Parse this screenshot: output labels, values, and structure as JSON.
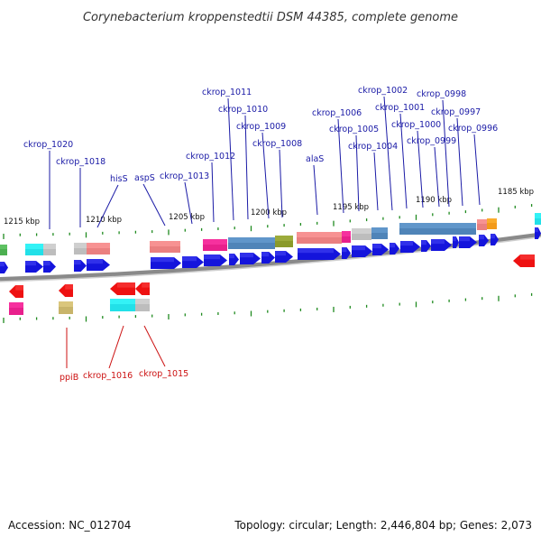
{
  "title": "Corynebacterium kroppenstedtii DSM 44385, complete genome",
  "colors": {
    "backbone": "#8a8a8a",
    "cds": "#1414dc",
    "reverse_cds": "#ee1111",
    "tick": "#1f8a1f",
    "label_forward": "#1a1aa6",
    "label_reverse": "#cc1111",
    "cog_cyan": "#22e0e8",
    "cog_grey": "#bdbdbd",
    "cog_salmon": "#ea8080",
    "cog_magenta": "#e8208c",
    "cog_steelblue": "#4f84b8",
    "cog_olive": "#8a9a2a",
    "cog_orange": "#f39a1a",
    "cog_khaki": "#c8b46a",
    "cog_green": "#4caf50"
  },
  "scale_labels": [
    "1215 kbp",
    "1210 kbp",
    "1205 kbp",
    "1200 kbp",
    "1195 kbp",
    "1190 kbp",
    "1185 kbp"
  ],
  "top_labels": [
    "ckrop_1020",
    "ckrop_1018",
    "hisS",
    "aspS",
    "ckrop_1013",
    "ckrop_1012",
    "ckrop_1011",
    "ckrop_1010",
    "ckrop_1009",
    "ckrop_1008",
    "alaS",
    "ckrop_1006",
    "ckrop_1005",
    "ckrop_1004",
    "ckrop_1002",
    "ckrop_1001",
    "ckrop_1000",
    "ckrop_0999",
    "ckrop_0998",
    "ckrop_0997",
    "ckrop_0996"
  ],
  "bottom_labels": [
    "ppiB",
    "ckrop_1016",
    "ckrop_1015"
  ],
  "footer": {
    "accession": "Accession: NC_012704",
    "stats": "Topology: circular; Length: 2,446,804 bp; Genes: 2,073"
  }
}
